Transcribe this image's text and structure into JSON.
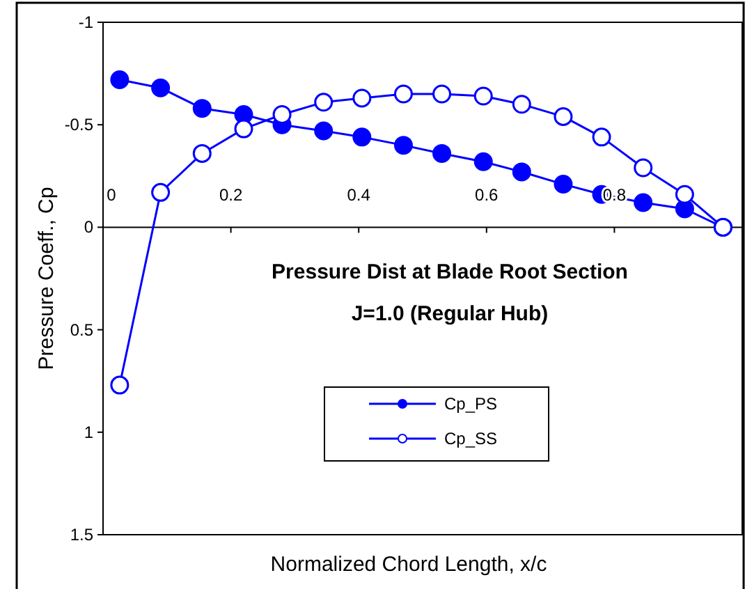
{
  "chart_data": {
    "type": "line",
    "title": "Pressure Dist at Blade Root Section",
    "subtitle": "J=1.0 (Regular Hub)",
    "xlabel": "Normalized Chord Length, x/c",
    "ylabel": "Pressure Coeff., Cp",
    "x": [
      0.026,
      0.09,
      0.155,
      0.22,
      0.28,
      0.345,
      0.405,
      0.47,
      0.53,
      0.595,
      0.655,
      0.72,
      0.78,
      0.845,
      0.91,
      0.97
    ],
    "series": [
      {
        "name": "Cp_PS",
        "color": "#0000ff",
        "marker": "circle",
        "values": [
          -0.72,
          -0.68,
          -0.58,
          -0.55,
          -0.5,
          -0.47,
          -0.44,
          -0.4,
          -0.36,
          -0.32,
          -0.27,
          -0.21,
          -0.16,
          -0.12,
          -0.09,
          0
        ]
      },
      {
        "name": "Cp_SS",
        "color": "#0000ff",
        "marker": "circle",
        "values": [
          0.77,
          -0.17,
          -0.36,
          -0.48,
          -0.55,
          -0.61,
          -0.63,
          -0.65,
          -0.65,
          -0.64,
          -0.6,
          -0.54,
          -0.44,
          -0.29,
          -0.16,
          0
        ]
      }
    ],
    "xlim": [
      0,
      1
    ],
    "xticks": [
      0,
      0.2,
      0.4,
      0.6,
      0.8
    ],
    "ylim": [
      1.5,
      -1
    ],
    "yticks": [
      -1,
      -0.5,
      0,
      0.5,
      1,
      1.5
    ],
    "grid": false,
    "legend": "bottom"
  }
}
